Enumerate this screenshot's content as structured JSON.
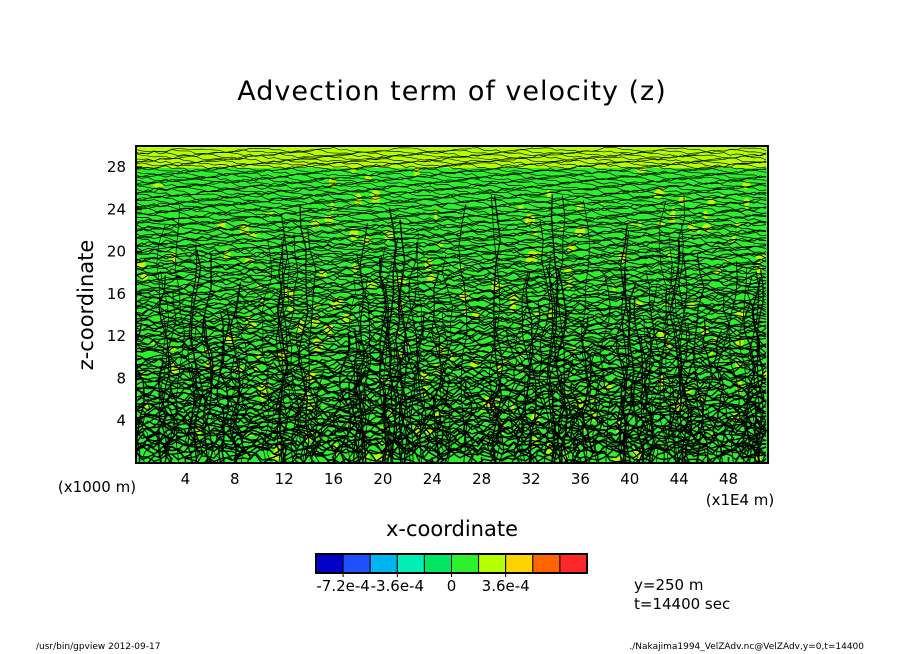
{
  "chart_data": {
    "type": "heatmap",
    "title": "Advection term of velocity (z)",
    "xlabel": "x-coordinate",
    "ylabel": "z-coordinate",
    "x_unit_left": "(x1000 m)",
    "x_unit_right": "(x1E4 m)",
    "xlim": [
      0,
      51.2
    ],
    "ylim": [
      0,
      30
    ],
    "x_ticks": [
      4,
      8,
      12,
      16,
      20,
      24,
      28,
      32,
      36,
      40,
      44,
      48
    ],
    "y_ticks": [
      4,
      8,
      12,
      16,
      20,
      24,
      28
    ],
    "colorbar": {
      "levels": 10,
      "colors": [
        "#0000c8",
        "#1e50ff",
        "#00b4f0",
        "#00f0b4",
        "#00e664",
        "#2cf02c",
        "#b4ff00",
        "#ffd200",
        "#ff6400",
        "#ff2828"
      ],
      "tick_labels": [
        "-7.2e-4",
        "-3.6e-4",
        "0",
        "3.6e-4"
      ],
      "tick_values": [
        -0.00072,
        -0.00036,
        0,
        0.00036
      ]
    },
    "annotations": [
      "y=250 m",
      "t=14400 sec"
    ]
  },
  "footer": {
    "left": "/usr/bin/gpview   2012-09-17",
    "right": "./Nakajima1994_VelZAdv.nc@VelZAdv,y=0,t=14400"
  }
}
